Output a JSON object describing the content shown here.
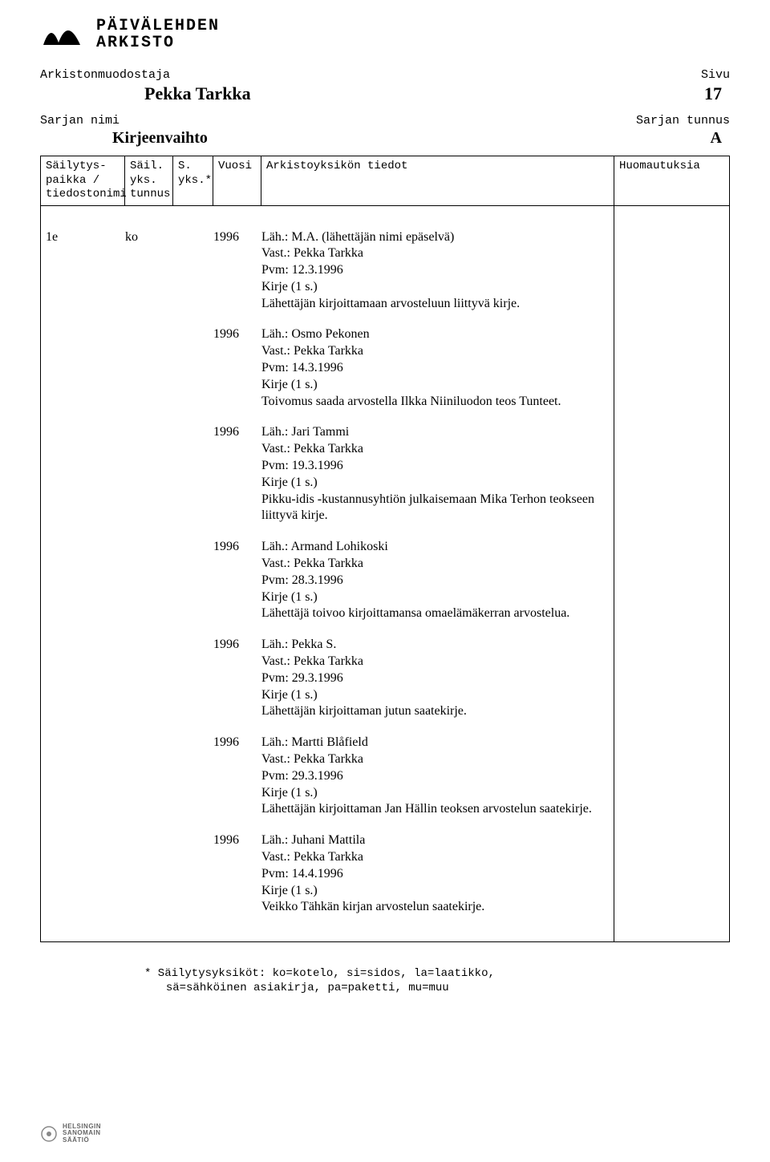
{
  "logo": {
    "line1": "PÄIVÄLEHDEN",
    "line2": "ARKISTO"
  },
  "header": {
    "left_label": "Arkistonmuodostaja",
    "right_label": "Sivu",
    "creator": "Pekka Tarkka",
    "page": "17"
  },
  "series": {
    "left_label": "Sarjan nimi",
    "right_label": "Sarjan tunnus",
    "name": "Kirjeenvaihto",
    "code": "A"
  },
  "columns": {
    "c1a": "Säilytys-",
    "c1b": "paikka /",
    "c1c": "tiedostonimi",
    "c2a": "Säil.",
    "c2b": "yks.",
    "c2c": "tunnus",
    "c3a": "S.",
    "c3b": "yks.*",
    "c4": "Vuosi",
    "c5": "Arkistoyksikön tiedot",
    "c6": "Huomautuksia"
  },
  "entries": [
    {
      "id": "1e",
      "yks": "ko",
      "year": "1996",
      "lines": [
        "Läh.: M.A. (lähettäjän nimi epäselvä)",
        "Vast.: Pekka Tarkka",
        "Pvm: 12.3.1996",
        "Kirje (1 s.)",
        "Lähettäjän kirjoittamaan arvosteluun liittyvä kirje."
      ]
    },
    {
      "id": "",
      "yks": "",
      "year": "1996",
      "lines": [
        "Läh.: Osmo Pekonen",
        "Vast.: Pekka Tarkka",
        "Pvm: 14.3.1996",
        "Kirje (1 s.)",
        "Toivomus saada arvostella Ilkka Niiniluodon teos Tunteet."
      ]
    },
    {
      "id": "",
      "yks": "",
      "year": "1996",
      "lines": [
        "Läh.: Jari Tammi",
        "Vast.: Pekka Tarkka",
        "Pvm: 19.3.1996",
        "Kirje (1 s.)",
        "Pikku-idis -kustannusyhtiön julkaisemaan Mika Terhon teokseen liittyvä kirje."
      ]
    },
    {
      "id": "",
      "yks": "",
      "year": "1996",
      "lines": [
        "Läh.: Armand Lohikoski",
        "Vast.: Pekka Tarkka",
        "Pvm: 28.3.1996",
        "Kirje (1 s.)",
        "Lähettäjä toivoo kirjoittamansa omaelämäkerran arvostelua."
      ]
    },
    {
      "id": "",
      "yks": "",
      "year": "1996",
      "lines": [
        "Läh.: Pekka S.",
        "Vast.: Pekka Tarkka",
        "Pvm: 29.3.1996",
        "Kirje (1 s.)",
        "Lähettäjän kirjoittaman jutun saatekirje."
      ]
    },
    {
      "id": "",
      "yks": "",
      "year": "1996",
      "lines": [
        "Läh.: Martti Blåfield",
        "Vast.: Pekka Tarkka",
        "Pvm: 29.3.1996",
        "Kirje (1 s.)",
        "Lähettäjän kirjoittaman Jan Hällin teoksen arvostelun saatekirje."
      ]
    },
    {
      "id": "",
      "yks": "",
      "year": "1996",
      "lines": [
        "Läh.: Juhani Mattila",
        "Vast.: Pekka Tarkka",
        "Pvm: 14.4.1996",
        "Kirje (1 s.)",
        "Veikko Tähkän kirjan arvostelun saatekirje."
      ]
    }
  ],
  "footnote": {
    "line1": "* Säilytysyksiköt: ko=kotelo, si=sidos, la=laatikko,",
    "line2": "sä=sähköinen asiakirja, pa=paketti, mu=muu"
  },
  "footer_logo": {
    "l1": "HELSINGIN",
    "l2": "SANOMAIN",
    "l3": "SÄÄTIÖ"
  }
}
